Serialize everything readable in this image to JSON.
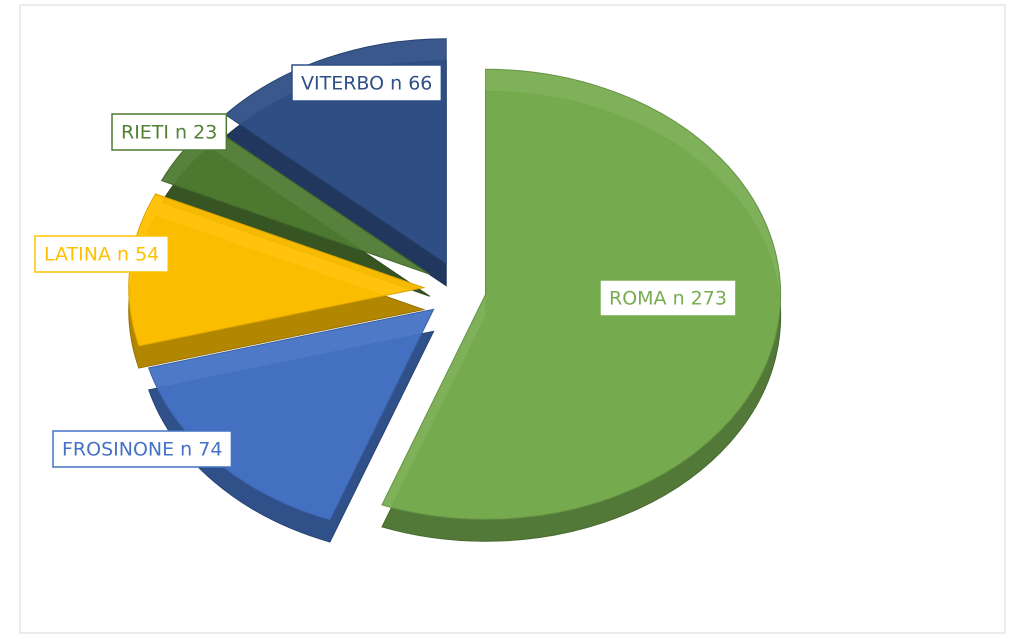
{
  "chart_data": {
    "type": "pie",
    "values": [
      273,
      74,
      54,
      23,
      66
    ],
    "value_labels": [
      "ROMA n 273",
      "FROSINONE n  74",
      "LATINA n  54",
      "RIETI n  23",
      "VITERBO n  66"
    ],
    "colors": [
      "#77ad50",
      "#4472c4",
      "#ffc000",
      "#4e7a32",
      "#2f4f86"
    ],
    "exploded": true
  }
}
